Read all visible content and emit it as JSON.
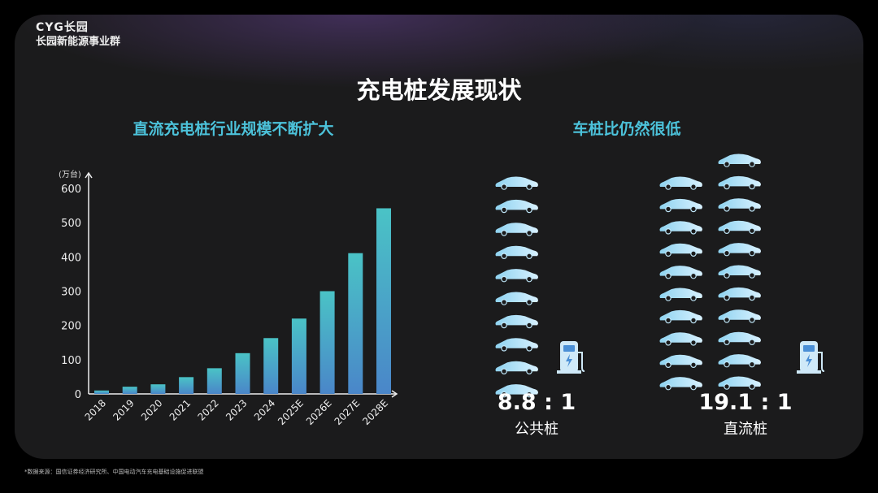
{
  "logo": {
    "brand": "CYG长园",
    "group": "长园新能源事业群"
  },
  "title": "充电桩发展现状",
  "left_subtitle": "直流充电桩行业规模不断扩大",
  "right_subtitle": "车桩比仍然很低",
  "chart_data": {
    "type": "bar",
    "title": "直流充电桩行业规模不断扩大",
    "ylabel": "(万台)",
    "xlabel": "",
    "ylim": [
      0,
      600
    ],
    "yticks": [
      0,
      100,
      200,
      300,
      400,
      500,
      600
    ],
    "categories": [
      "2018",
      "2019",
      "2020",
      "2021",
      "2022",
      "2023",
      "2024",
      "2025E",
      "2026E",
      "2027E",
      "2028E"
    ],
    "values": [
      10,
      21,
      28,
      49,
      75,
      119,
      163,
      220,
      300,
      411,
      542
    ],
    "grid": false,
    "colors": {
      "top": "#4ac3c6",
      "bottom": "#4a86c9"
    }
  },
  "ratios": [
    {
      "value": "8.8 : 1",
      "label": "公共桩",
      "cars": 10
    },
    {
      "value": "19.1 : 1",
      "label": "直流桩",
      "cars": 21
    }
  ],
  "icons": {
    "car": "car-icon",
    "charger": "ev-charger-icon"
  },
  "footnote": "*数据来源：国信证券经济研究所、中国电动汽车充电基础设施促进联盟"
}
